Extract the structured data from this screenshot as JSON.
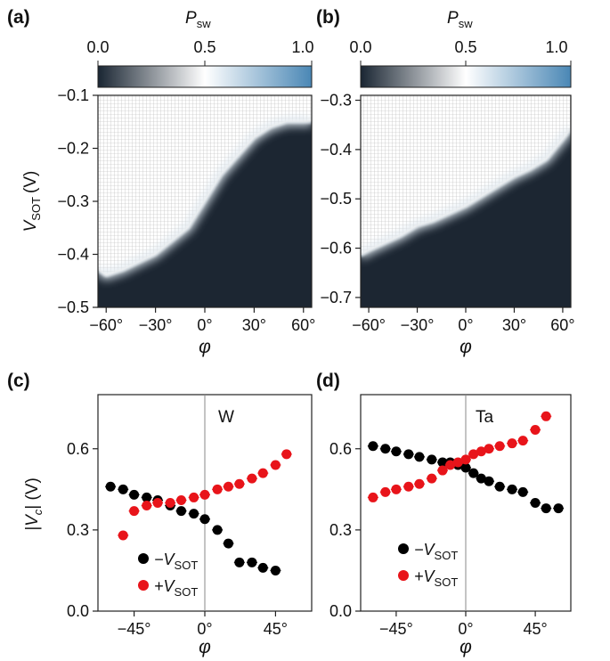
{
  "colors": {
    "dark": "#1a2633",
    "light": "#ffffff",
    "blue": "#4a87b5",
    "grid": "#b5b5b5",
    "neg_series": "#000000",
    "pos_series": "#e8141a"
  },
  "chart_data": [
    {
      "panel": "a",
      "panel_label": "(a)",
      "type": "heatmap",
      "colorbar": {
        "label": "P",
        "label_sub": "sw",
        "min": 0.0,
        "max": 1.0,
        "ticks": [
          0.0,
          0.5,
          1.0
        ],
        "tick_labels": [
          "0.0",
          "0.5",
          "1.0"
        ]
      },
      "x": {
        "label": "φ",
        "range": [
          -65,
          65
        ],
        "ticks": [
          -60,
          -30,
          0,
          30,
          60
        ],
        "tick_labels": [
          "−60°",
          "−30°",
          "0°",
          "30°",
          "60°"
        ]
      },
      "y": {
        "label_main": "V",
        "label_sub": "SOT",
        "label_unit": "(V)",
        "range": [
          -0.5,
          -0.1
        ],
        "ticks": [
          -0.5,
          -0.4,
          -0.3,
          -0.2,
          -0.1
        ],
        "tick_labels": [
          "−0.5",
          "−0.4",
          "−0.3",
          "−0.2",
          "−0.1"
        ]
      },
      "boundary_phi": [
        -65,
        -60,
        -50,
        -40,
        -30,
        -20,
        -10,
        0,
        10,
        20,
        30,
        40,
        50,
        60,
        65
      ],
      "boundary_v": [
        -0.43,
        -0.44,
        -0.43,
        -0.415,
        -0.4,
        -0.375,
        -0.35,
        -0.3,
        -0.25,
        -0.215,
        -0.18,
        -0.16,
        -0.15,
        -0.15,
        -0.15
      ],
      "measured_limit_phi": [
        -65,
        -40,
        20,
        65
      ],
      "measured_limit_v": [
        -0.47,
        -0.44,
        -0.365,
        -0.365
      ]
    },
    {
      "panel": "b",
      "panel_label": "(b)",
      "type": "heatmap",
      "colorbar": {
        "label": "P",
        "label_sub": "sw",
        "min": 0.0,
        "max": 1.0,
        "ticks": [
          0.0,
          0.5,
          1.0
        ],
        "tick_labels": [
          "0.0",
          "0.5",
          "1.0"
        ]
      },
      "x": {
        "label": "φ",
        "range": [
          -65,
          65
        ],
        "ticks": [
          -60,
          -30,
          0,
          30,
          60
        ],
        "tick_labels": [
          "−60°",
          "−30°",
          "0°",
          "30°",
          "60°"
        ]
      },
      "y": {
        "range": [
          -0.72,
          -0.29
        ],
        "ticks": [
          -0.7,
          -0.6,
          -0.5,
          -0.4,
          -0.3
        ],
        "tick_labels": [
          "−0.7",
          "−0.6",
          "−0.5",
          "−0.4",
          "−0.3"
        ]
      },
      "boundary_phi": [
        -65,
        -60,
        -50,
        -40,
        -30,
        -20,
        -10,
        0,
        10,
        20,
        30,
        40,
        50,
        60,
        65
      ],
      "boundary_v": [
        -0.615,
        -0.605,
        -0.59,
        -0.575,
        -0.555,
        -0.545,
        -0.53,
        -0.515,
        -0.495,
        -0.475,
        -0.455,
        -0.44,
        -0.42,
        -0.38,
        -0.36
      ],
      "measured_limit_phi": [
        -65,
        0,
        40,
        65
      ],
      "measured_limit_v": [
        -0.665,
        -0.68,
        -0.695,
        -0.71
      ]
    },
    {
      "panel": "c",
      "panel_label": "(c)",
      "type": "scatter",
      "annotation": "W",
      "x": {
        "label": "φ",
        "range": [
          -68,
          68
        ],
        "ticks": [
          -45,
          0,
          45
        ],
        "tick_labels": [
          "−45°",
          "0°",
          "45°"
        ]
      },
      "y": {
        "label_pre": "|V",
        "label_sub": "c",
        "label_post": "| (V)",
        "range": [
          0.0,
          0.8
        ],
        "ticks": [
          0.0,
          0.3,
          0.6
        ],
        "tick_labels": [
          "0.0",
          "0.3",
          "0.6"
        ]
      },
      "legend": [
        {
          "sign": "−V",
          "sub": "SOT",
          "color": "#000000"
        },
        {
          "sign": "+V",
          "sub": "SOT",
          "color": "#e8141a"
        }
      ],
      "series": [
        {
          "color": "#000000",
          "x": [
            -60,
            -52,
            -45,
            -37,
            -30,
            -22,
            -15,
            -7,
            0,
            8,
            15,
            22,
            30,
            37,
            45
          ],
          "y": [
            0.46,
            0.45,
            0.43,
            0.42,
            0.41,
            0.39,
            0.37,
            0.36,
            0.34,
            0.3,
            0.25,
            0.18,
            0.18,
            0.16,
            0.15
          ]
        },
        {
          "color": "#e8141a",
          "x": [
            -52,
            -45,
            -37,
            -30,
            -22,
            -15,
            -7,
            0,
            8,
            15,
            22,
            30,
            37,
            45,
            52
          ],
          "y": [
            0.28,
            0.37,
            0.39,
            0.4,
            0.4,
            0.41,
            0.42,
            0.43,
            0.45,
            0.46,
            0.47,
            0.49,
            0.51,
            0.54,
            0.58
          ]
        }
      ]
    },
    {
      "panel": "d",
      "panel_label": "(d)",
      "type": "scatter",
      "annotation": "Ta",
      "x": {
        "label": "φ",
        "range": [
          -68,
          68
        ],
        "ticks": [
          -45,
          0,
          45
        ],
        "tick_labels": [
          "−45°",
          "0°",
          "45°"
        ]
      },
      "y": {
        "range": [
          0.0,
          0.8
        ],
        "ticks": [
          0.0,
          0.3,
          0.6
        ],
        "tick_labels": [
          "0.0",
          "0.3",
          "0.6"
        ]
      },
      "legend": [
        {
          "sign": "−V",
          "sub": "SOT",
          "color": "#000000"
        },
        {
          "sign": "+V",
          "sub": "SOT",
          "color": "#e8141a"
        }
      ],
      "series": [
        {
          "color": "#000000",
          "x": [
            -60,
            -52,
            -45,
            -37,
            -30,
            -22,
            -15,
            -10,
            -5,
            0,
            5,
            10,
            15,
            22,
            30,
            37,
            45,
            52,
            60
          ],
          "y": [
            0.61,
            0.6,
            0.59,
            0.58,
            0.57,
            0.56,
            0.55,
            0.55,
            0.54,
            0.53,
            0.51,
            0.49,
            0.48,
            0.46,
            0.45,
            0.44,
            0.4,
            0.38,
            0.38
          ]
        },
        {
          "color": "#e8141a",
          "x": [
            -60,
            -52,
            -45,
            -37,
            -30,
            -22,
            -15,
            -10,
            -5,
            0,
            5,
            10,
            15,
            22,
            30,
            37,
            45,
            52
          ],
          "y": [
            0.42,
            0.44,
            0.45,
            0.46,
            0.47,
            0.49,
            0.52,
            0.54,
            0.55,
            0.56,
            0.58,
            0.59,
            0.6,
            0.61,
            0.62,
            0.63,
            0.67,
            0.72
          ]
        }
      ]
    }
  ]
}
